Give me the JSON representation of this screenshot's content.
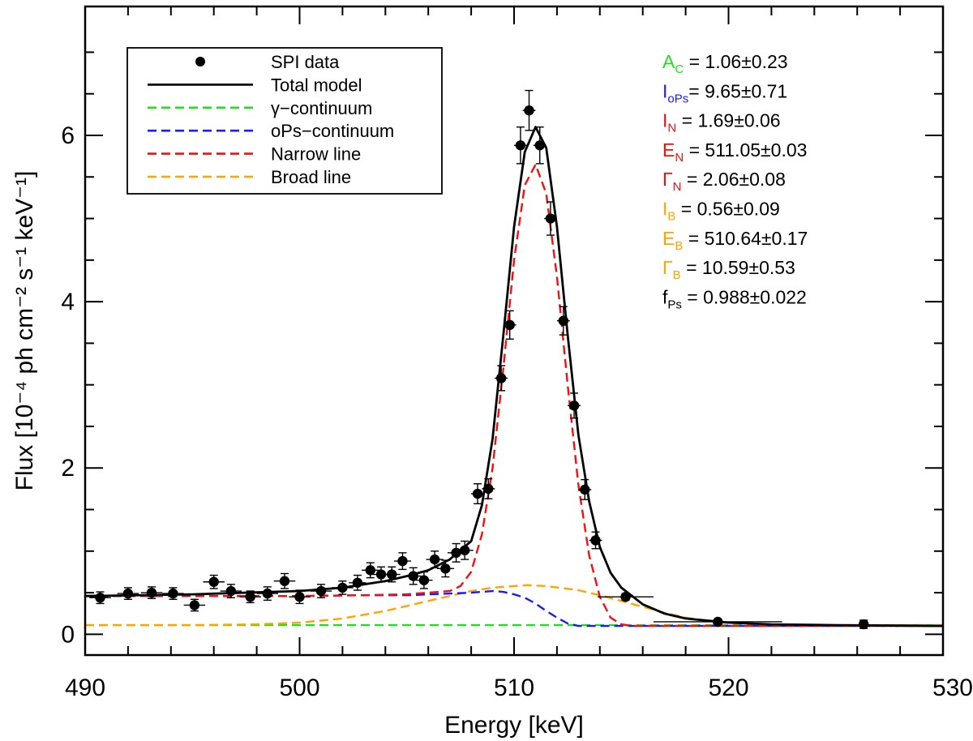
{
  "chart_data": {
    "type": "line",
    "xlabel": "Energy [keV]",
    "ylabel": "Flux [10⁻⁴ ph cm⁻² s⁻¹ keV⁻¹]",
    "xlim": [
      490,
      530
    ],
    "ylim": [
      -0.25,
      7.55
    ],
    "xticks": [
      490,
      500,
      510,
      520,
      530
    ],
    "yticks": [
      0,
      2,
      4,
      6
    ],
    "legend_position": "top-left",
    "legend": [
      {
        "label": "SPI data",
        "style": "marker",
        "color": "#000000"
      },
      {
        "label": "Total model",
        "style": "solid",
        "color": "#000000"
      },
      {
        "label": "γ−continuum",
        "style": "dashed",
        "color": "#22dd22"
      },
      {
        "label": "oPs−continuum",
        "style": "dashed",
        "color": "#1a1aff"
      },
      {
        "label": "Narrow line",
        "style": "dashed",
        "color": "#ee1111"
      },
      {
        "label": "Broad line",
        "style": "dashed",
        "color": "#ffa500"
      }
    ],
    "parameters": [
      {
        "symbol": "A",
        "sub": "C",
        "value": " = 1.06±0.23",
        "color": "#22dd22"
      },
      {
        "symbol": "I",
        "sub": "oPs",
        "value": "= 9.65±0.71",
        "color": "#1a1aff"
      },
      {
        "symbol": "I",
        "sub": "N",
        "value": "  = 1.69±0.06",
        "color": "#ee1111"
      },
      {
        "symbol": "E",
        "sub": "N",
        "value": " = 511.05±0.03",
        "color": "#ee1111"
      },
      {
        "symbol": "Γ",
        "sub": "N",
        "value": " = 2.06±0.08",
        "color": "#ee1111"
      },
      {
        "symbol": "I",
        "sub": "B",
        "value": "  = 0.56±0.09",
        "color": "#ffa500"
      },
      {
        "symbol": "E",
        "sub": "B",
        "value": " = 510.64±0.17",
        "color": "#ffa500"
      },
      {
        "symbol": "Γ",
        "sub": "B",
        "value": " = 10.59±0.53",
        "color": "#ffa500"
      },
      {
        "symbol": "f",
        "sub": "Ps",
        "value": " = 0.988±0.022",
        "color": "#000000"
      }
    ],
    "series": [
      {
        "name": "SPI data",
        "kind": "points",
        "color": "#000000",
        "points": [
          {
            "x": 490.7,
            "y": 0.44,
            "xerr": 0.5,
            "yerr": 0.07
          },
          {
            "x": 492.0,
            "y": 0.49,
            "xerr": 0.5,
            "yerr": 0.07
          },
          {
            "x": 493.1,
            "y": 0.5,
            "xerr": 0.5,
            "yerr": 0.07
          },
          {
            "x": 494.1,
            "y": 0.49,
            "xerr": 0.5,
            "yerr": 0.07
          },
          {
            "x": 495.1,
            "y": 0.35,
            "xerr": 0.5,
            "yerr": 0.07
          },
          {
            "x": 496.0,
            "y": 0.63,
            "xerr": 0.5,
            "yerr": 0.08
          },
          {
            "x": 496.8,
            "y": 0.52,
            "xerr": 0.5,
            "yerr": 0.08
          },
          {
            "x": 497.7,
            "y": 0.45,
            "xerr": 0.5,
            "yerr": 0.07
          },
          {
            "x": 498.5,
            "y": 0.49,
            "xerr": 0.5,
            "yerr": 0.08
          },
          {
            "x": 499.3,
            "y": 0.64,
            "xerr": 0.5,
            "yerr": 0.09
          },
          {
            "x": 500.0,
            "y": 0.45,
            "xerr": 0.5,
            "yerr": 0.08
          },
          {
            "x": 501.0,
            "y": 0.52,
            "xerr": 0.5,
            "yerr": 0.08
          },
          {
            "x": 502.0,
            "y": 0.56,
            "xerr": 0.5,
            "yerr": 0.08
          },
          {
            "x": 502.7,
            "y": 0.62,
            "xerr": 0.4,
            "yerr": 0.09
          },
          {
            "x": 503.3,
            "y": 0.77,
            "xerr": 0.4,
            "yerr": 0.09
          },
          {
            "x": 503.8,
            "y": 0.72,
            "xerr": 0.4,
            "yerr": 0.09
          },
          {
            "x": 504.3,
            "y": 0.72,
            "xerr": 0.4,
            "yerr": 0.09
          },
          {
            "x": 504.8,
            "y": 0.88,
            "xerr": 0.4,
            "yerr": 0.1
          },
          {
            "x": 505.3,
            "y": 0.7,
            "xerr": 0.4,
            "yerr": 0.1
          },
          {
            "x": 505.8,
            "y": 0.65,
            "xerr": 0.4,
            "yerr": 0.1
          },
          {
            "x": 506.3,
            "y": 0.9,
            "xerr": 0.4,
            "yerr": 0.1
          },
          {
            "x": 506.8,
            "y": 0.79,
            "xerr": 0.4,
            "yerr": 0.1
          },
          {
            "x": 507.3,
            "y": 0.98,
            "xerr": 0.4,
            "yerr": 0.11
          },
          {
            "x": 507.7,
            "y": 1.01,
            "xerr": 0.4,
            "yerr": 0.11
          },
          {
            "x": 508.3,
            "y": 1.69,
            "xerr": 0.3,
            "yerr": 0.12
          },
          {
            "x": 508.8,
            "y": 1.75,
            "xerr": 0.3,
            "yerr": 0.12
          },
          {
            "x": 509.4,
            "y": 3.08,
            "xerr": 0.3,
            "yerr": 0.15
          },
          {
            "x": 509.8,
            "y": 3.72,
            "xerr": 0.3,
            "yerr": 0.17
          },
          {
            "x": 510.3,
            "y": 5.88,
            "xerr": 0.3,
            "yerr": 0.22
          },
          {
            "x": 510.7,
            "y": 6.3,
            "xerr": 0.3,
            "yerr": 0.24
          },
          {
            "x": 511.2,
            "y": 5.88,
            "xerr": 0.3,
            "yerr": 0.22
          },
          {
            "x": 511.7,
            "y": 5.0,
            "xerr": 0.3,
            "yerr": 0.2
          },
          {
            "x": 512.3,
            "y": 3.77,
            "xerr": 0.3,
            "yerr": 0.17
          },
          {
            "x": 512.8,
            "y": 2.75,
            "xerr": 0.3,
            "yerr": 0.15
          },
          {
            "x": 513.3,
            "y": 1.74,
            "xerr": 0.3,
            "yerr": 0.12
          },
          {
            "x": 513.8,
            "y": 1.13,
            "xerr": 0.3,
            "yerr": 0.1
          },
          {
            "x": 515.2,
            "y": 0.45,
            "xerr": 1.3,
            "yerr": 0.04
          },
          {
            "x": 519.5,
            "y": 0.15,
            "xerr": 3.0,
            "yerr": 0.03
          },
          {
            "x": 526.3,
            "y": 0.12,
            "xerr": 0.1,
            "yerr": 0.05
          }
        ]
      },
      {
        "name": "Total model",
        "kind": "line",
        "dash": "solid",
        "color": "#000000",
        "x": [
          490,
          495,
          500,
          502,
          504,
          505,
          506,
          507,
          508,
          508.5,
          509,
          509.5,
          510,
          510.5,
          511,
          511.5,
          512,
          512.5,
          513,
          513.5,
          514,
          514.5,
          515,
          516,
          517,
          518,
          520,
          522,
          525,
          530
        ],
        "y": [
          0.46,
          0.48,
          0.52,
          0.56,
          0.64,
          0.7,
          0.77,
          0.9,
          1.12,
          1.55,
          2.35,
          3.6,
          4.9,
          5.8,
          6.1,
          5.85,
          4.9,
          3.6,
          2.4,
          1.6,
          1.05,
          0.74,
          0.56,
          0.36,
          0.25,
          0.19,
          0.14,
          0.12,
          0.11,
          0.1
        ]
      },
      {
        "name": "γ−continuum",
        "kind": "line",
        "dash": "dashed",
        "color": "#22dd22",
        "x": [
          490,
          530
        ],
        "y": [
          0.11,
          0.11
        ]
      },
      {
        "name": "oPs−continuum",
        "kind": "line",
        "dash": "dashed",
        "color": "#1a1aff",
        "x": [
          490,
          495,
          500,
          503,
          505,
          507,
          508,
          509,
          509.5,
          510,
          510.5,
          511,
          511.5,
          512,
          512.5,
          513,
          514,
          520,
          530
        ],
        "y": [
          0.46,
          0.46,
          0.46,
          0.47,
          0.47,
          0.49,
          0.5,
          0.52,
          0.51,
          0.48,
          0.44,
          0.37,
          0.28,
          0.2,
          0.13,
          0.1,
          0.1,
          0.1,
          0.1
        ]
      },
      {
        "name": "Narrow line",
        "kind": "line",
        "dash": "dashed",
        "color": "#ee1111",
        "x": [
          490,
          495,
          500,
          503,
          505,
          507,
          507.5,
          508,
          508.5,
          509,
          509.5,
          510,
          510.5,
          511,
          511.5,
          512,
          512.5,
          513,
          513.5,
          514,
          514.5,
          515,
          515.5,
          516,
          517,
          520,
          530
        ],
        "y": [
          0.46,
          0.46,
          0.46,
          0.47,
          0.48,
          0.52,
          0.58,
          0.75,
          1.2,
          2.0,
          3.2,
          4.5,
          5.4,
          5.65,
          5.3,
          4.3,
          3.0,
          1.8,
          0.95,
          0.45,
          0.2,
          0.12,
          0.1,
          0.1,
          0.1,
          0.1,
          0.1
        ]
      },
      {
        "name": "Broad line",
        "kind": "line",
        "dash": "dashed",
        "color": "#ffa500",
        "x": [
          490,
          495,
          498,
          500,
          502,
          504,
          506,
          508,
          509,
          510,
          510.6,
          511.5,
          513,
          514,
          515,
          516,
          517,
          518,
          519,
          520,
          522,
          525,
          530
        ],
        "y": [
          0.11,
          0.11,
          0.12,
          0.14,
          0.19,
          0.28,
          0.4,
          0.52,
          0.56,
          0.58,
          0.59,
          0.58,
          0.53,
          0.47,
          0.4,
          0.33,
          0.26,
          0.2,
          0.16,
          0.14,
          0.12,
          0.11,
          0.11
        ]
      }
    ]
  }
}
